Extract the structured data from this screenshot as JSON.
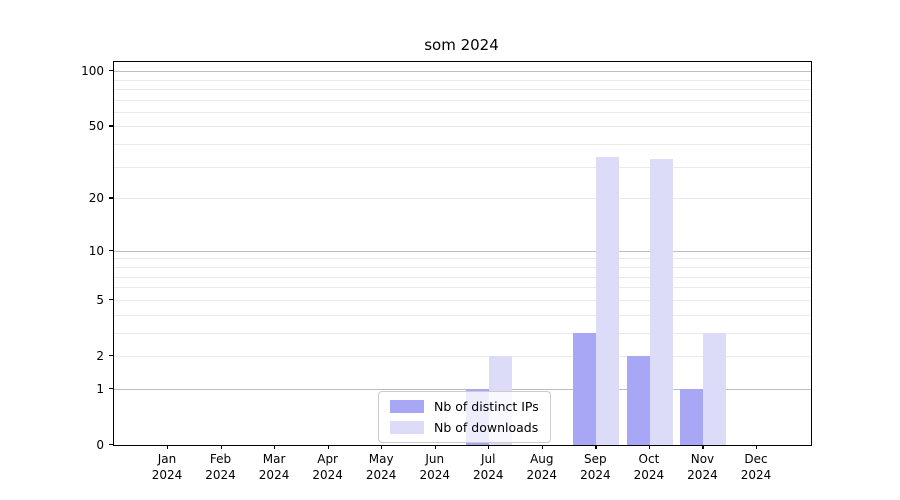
{
  "chart_data": {
    "type": "bar",
    "title": "som 2024",
    "months": [
      "Jan",
      "Feb",
      "Mar",
      "Apr",
      "May",
      "Jun",
      "Jul",
      "Aug",
      "Sep",
      "Oct",
      "Nov",
      "Dec"
    ],
    "year_label": "2024",
    "series": [
      {
        "name": "Nb of distinct IPs",
        "color": "#a7a7f5",
        "values": [
          0,
          0,
          0,
          0,
          0,
          0,
          1,
          0,
          3,
          2,
          1,
          0
        ]
      },
      {
        "name": "Nb of downloads",
        "color": "#dcdcf8",
        "values": [
          0,
          0,
          0,
          0,
          0,
          0,
          2,
          0,
          34,
          33,
          3,
          0
        ]
      }
    ],
    "ytick_values": [
      0,
      1,
      2,
      5,
      10,
      20,
      50,
      100
    ],
    "ytick_labels": [
      "0",
      "1",
      "2",
      "5",
      "10",
      "20",
      "50",
      "100"
    ],
    "grid_major_values": [
      1,
      10,
      100
    ],
    "grid_minor_values": [
      2,
      3,
      4,
      5,
      6,
      7,
      8,
      9,
      20,
      30,
      40,
      50,
      60,
      70,
      80,
      90
    ],
    "scale": "log1p",
    "ylim": [
      0,
      112
    ],
    "grid": "on",
    "legend_position": "lower center"
  },
  "colors": {
    "grid_minor": "#eaeaea",
    "grid_major": "#bdbdbd",
    "spine": "#000000",
    "legend_border": "#cccccc",
    "text": "#000000"
  }
}
